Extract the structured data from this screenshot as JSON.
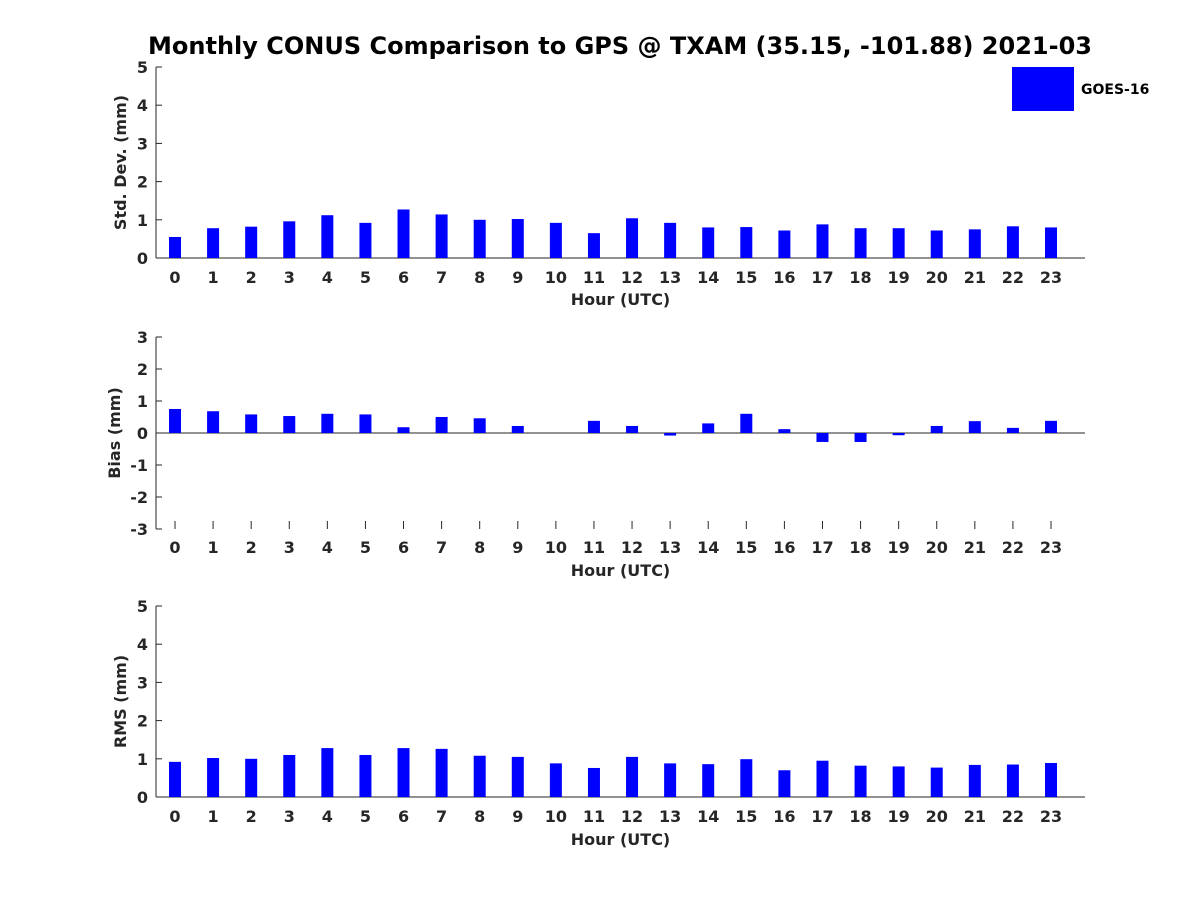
{
  "title": "Monthly CONUS Comparison to GPS @ TXAM (35.15, -101.88) 2021-03",
  "legend": {
    "label": "GOES-16",
    "color": "#0000ff"
  },
  "chart_data": [
    {
      "type": "bar",
      "name": "std-dev",
      "title": "Monthly CONUS Comparison to GPS @ TXAM (35.15, -101.88) 2021-03",
      "xlabel": "Hour (UTC)",
      "ylabel": "Std. Dev. (mm)",
      "ylim": [
        0,
        5
      ],
      "yticks": [
        "0",
        "1",
        "2",
        "3",
        "4",
        "5"
      ],
      "categories": [
        "0",
        "1",
        "2",
        "3",
        "4",
        "5",
        "6",
        "7",
        "8",
        "9",
        "10",
        "11",
        "12",
        "13",
        "14",
        "15",
        "16",
        "17",
        "18",
        "19",
        "20",
        "21",
        "22",
        "23"
      ],
      "series": [
        {
          "name": "GOES-16",
          "color": "#0000ff",
          "values": [
            0.55,
            0.78,
            0.82,
            0.96,
            1.12,
            0.92,
            1.27,
            1.14,
            1.0,
            1.02,
            0.92,
            0.65,
            1.04,
            0.92,
            0.8,
            0.81,
            0.72,
            0.88,
            0.78,
            0.78,
            0.72,
            0.75,
            0.83,
            0.8
          ]
        }
      ],
      "legend_position": "top-right"
    },
    {
      "type": "bar",
      "name": "bias",
      "xlabel": "Hour (UTC)",
      "ylabel": "Bias (mm)",
      "ylim": [
        -3,
        3
      ],
      "yticks": [
        "-3",
        "-2",
        "-1",
        "0",
        "1",
        "2",
        "3"
      ],
      "categories": [
        "0",
        "1",
        "2",
        "3",
        "4",
        "5",
        "6",
        "7",
        "8",
        "9",
        "10",
        "11",
        "12",
        "13",
        "14",
        "15",
        "16",
        "17",
        "18",
        "19",
        "20",
        "21",
        "22",
        "23"
      ],
      "series": [
        {
          "name": "GOES-16",
          "color": "#0000ff",
          "values": [
            0.75,
            0.68,
            0.58,
            0.53,
            0.6,
            0.58,
            0.18,
            0.5,
            0.46,
            0.22,
            0.0,
            0.38,
            0.22,
            -0.08,
            0.3,
            0.6,
            0.12,
            -0.28,
            -0.28,
            -0.07,
            0.22,
            0.37,
            0.16,
            0.38
          ]
        }
      ]
    },
    {
      "type": "bar",
      "name": "rms",
      "xlabel": "Hour (UTC)",
      "ylabel": "RMS (mm)",
      "ylim": [
        0,
        5
      ],
      "yticks": [
        "0",
        "1",
        "2",
        "3",
        "4",
        "5"
      ],
      "categories": [
        "0",
        "1",
        "2",
        "3",
        "4",
        "5",
        "6",
        "7",
        "8",
        "9",
        "10",
        "11",
        "12",
        "13",
        "14",
        "15",
        "16",
        "17",
        "18",
        "19",
        "20",
        "21",
        "22",
        "23"
      ],
      "series": [
        {
          "name": "GOES-16",
          "color": "#0000ff",
          "values": [
            0.92,
            1.02,
            1.0,
            1.1,
            1.28,
            1.1,
            1.28,
            1.26,
            1.08,
            1.05,
            0.88,
            0.76,
            1.05,
            0.88,
            0.86,
            0.99,
            0.7,
            0.95,
            0.82,
            0.8,
            0.77,
            0.84,
            0.85,
            0.89
          ]
        }
      ]
    }
  ]
}
